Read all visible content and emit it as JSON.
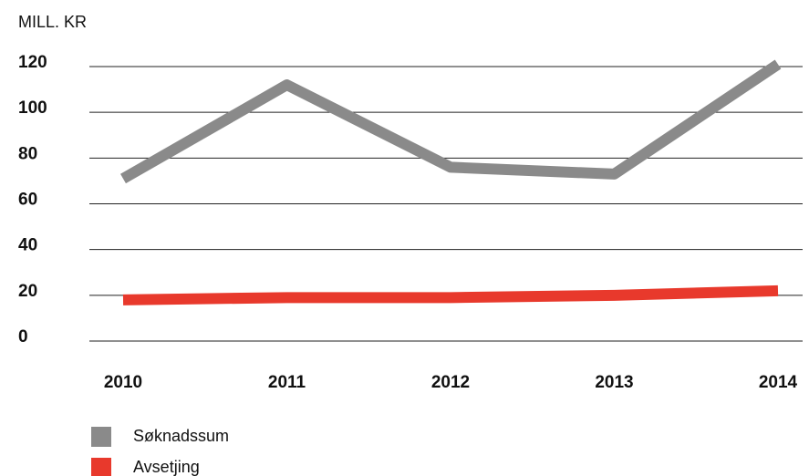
{
  "chart_data": {
    "type": "line",
    "ylabel": "MILL. KR",
    "categories": [
      "2010",
      "2011",
      "2012",
      "2013",
      "2014"
    ],
    "series": [
      {
        "name": "Søknadssum",
        "color": "#8a8a8a",
        "values": [
          71,
          112,
          76,
          73,
          121
        ]
      },
      {
        "name": "Avsetjing",
        "color": "#e8392c",
        "values": [
          18,
          19,
          19,
          20,
          22
        ]
      }
    ],
    "ylim": [
      0,
      120
    ],
    "yticks": [
      0,
      20,
      40,
      60,
      80,
      100,
      120
    ],
    "grid": true
  }
}
